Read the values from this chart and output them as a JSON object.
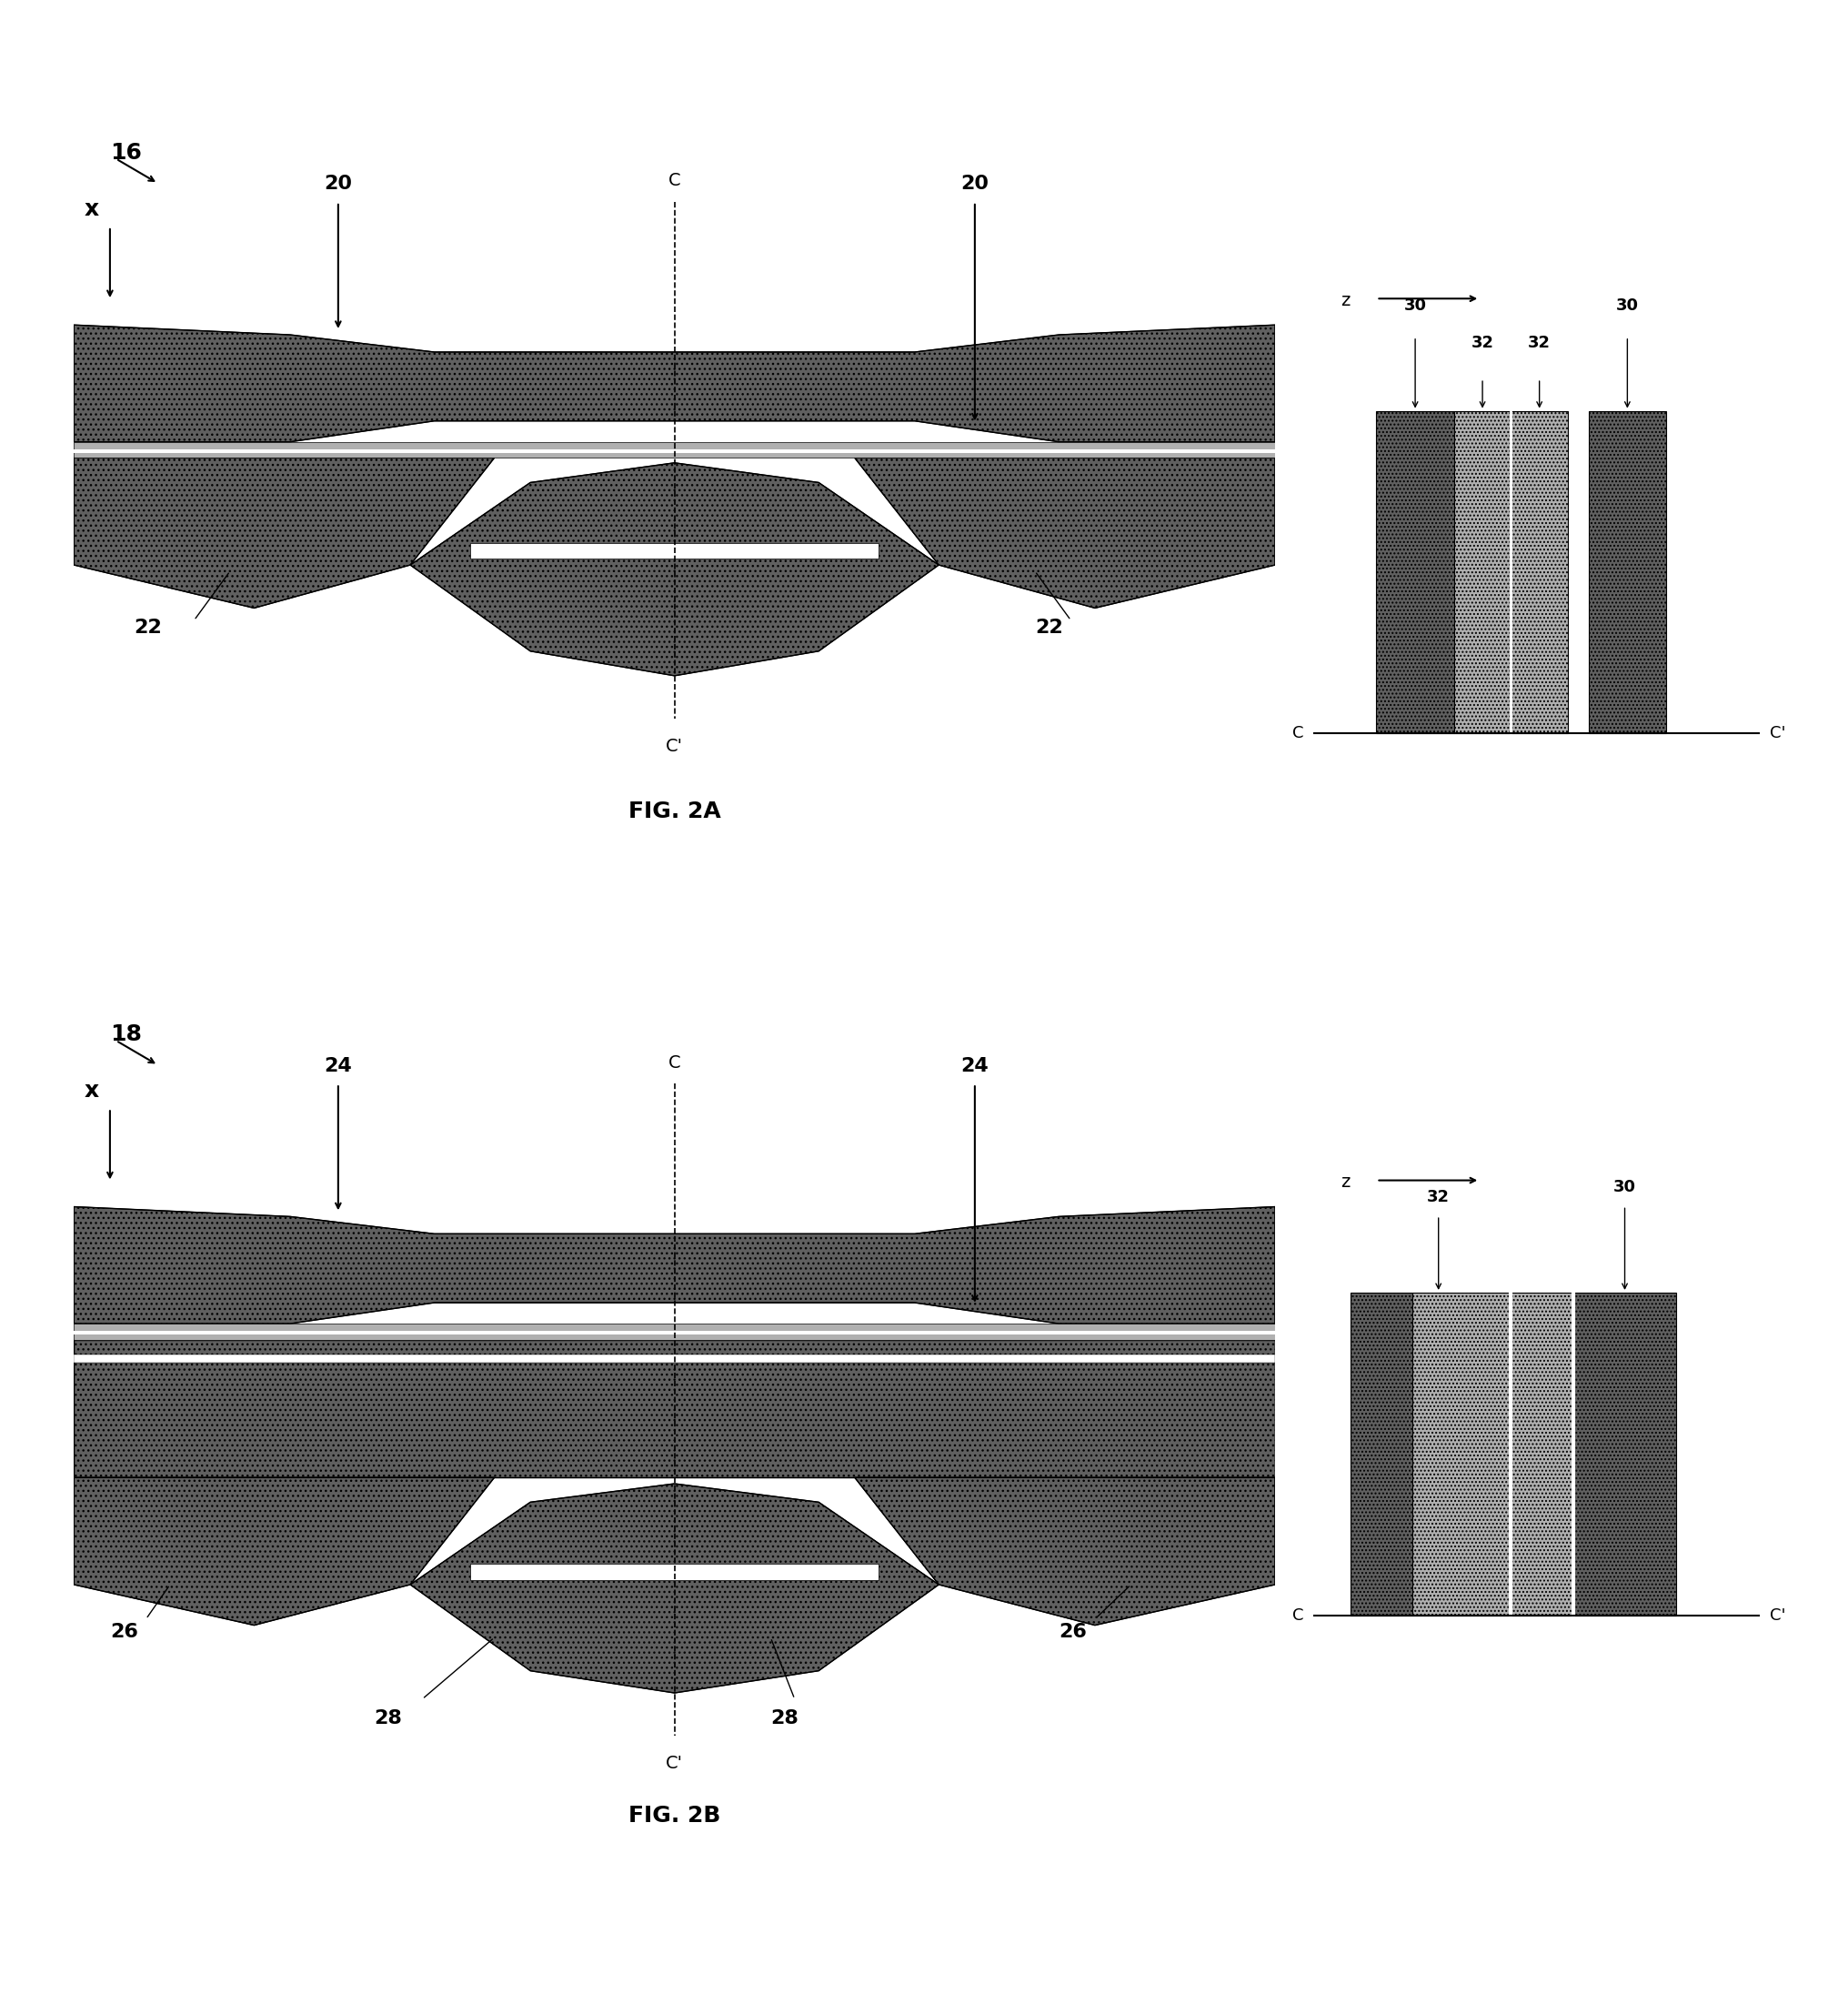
{
  "bg_color": "#ffffff",
  "fig_width": 20.32,
  "fig_height": 22.03,
  "dark_fc": "#606060",
  "light_fc": "#b0b0b0",
  "white_fc": "#ffffff",
  "mid_fc": "#909090",
  "fig2a_label": "FIG. 2A",
  "fig2b_label": "FIG. 2B",
  "label_16": "16",
  "label_18": "18",
  "label_20": "20",
  "label_22": "22",
  "label_24": "24",
  "label_26": "26",
  "label_28": "28",
  "label_30": "30",
  "label_32": "32",
  "label_C": "C",
  "label_Cprime": "C'",
  "label_x": "x",
  "label_z": "z",
  "fontsize_label": 18,
  "fontsize_num": 16,
  "fontsize_fig": 18
}
